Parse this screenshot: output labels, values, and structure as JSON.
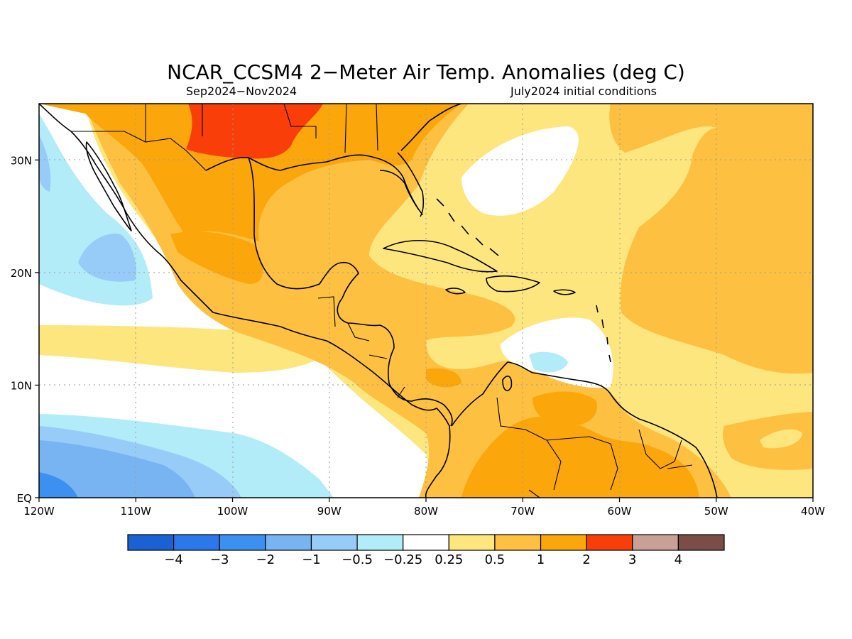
{
  "title": "NCAR_CCSM4 2−Meter Air Temp. Anomalies (deg C)",
  "subtitle_left": "Sep2024−Nov2024",
  "subtitle_right": "July2024 initial conditions",
  "map": {
    "lon_range": [
      -120,
      -40
    ],
    "lat_range": [
      0,
      35
    ],
    "lon_ticks": [
      {
        "value": -120,
        "label": "120W"
      },
      {
        "value": -110,
        "label": "110W"
      },
      {
        "value": -100,
        "label": "100W"
      },
      {
        "value": -90,
        "label": "90W"
      },
      {
        "value": -80,
        "label": "80W"
      },
      {
        "value": -70,
        "label": "70W"
      },
      {
        "value": -60,
        "label": "60W"
      },
      {
        "value": -50,
        "label": "50W"
      },
      {
        "value": -40,
        "label": "40W"
      }
    ],
    "lat_ticks": [
      {
        "value": 0,
        "label": "EQ"
      },
      {
        "value": 10,
        "label": "10N"
      },
      {
        "value": 20,
        "label": "20N"
      },
      {
        "value": 30,
        "label": "30N"
      }
    ],
    "grid": true
  },
  "colorbar": {
    "colors": [
      "#1a62d4",
      "#2a78ea",
      "#3c90f0",
      "#78b4f2",
      "#98ccf8",
      "#b2ecf8",
      "#ffffff",
      "#fee67e",
      "#fdc040",
      "#fba60a",
      "#fa3e0a",
      "#c8a096",
      "#7a4e46"
    ],
    "labels": [
      "−4",
      "−3",
      "−2",
      "−1",
      "−0.5",
      "−0.25",
      "0.25",
      "0.5",
      "1",
      "2",
      "3",
      "4"
    ]
  },
  "colors": {
    "very_warm": "#fa3e0a",
    "warm": "#fba60a",
    "mild": "#fdc040",
    "slight": "#fee67e",
    "neutral": "#ffffff",
    "slight_cool": "#b2ecf8",
    "cool": "#98ccf8",
    "cooler": "#78b4f2",
    "cold": "#3c90f0"
  }
}
